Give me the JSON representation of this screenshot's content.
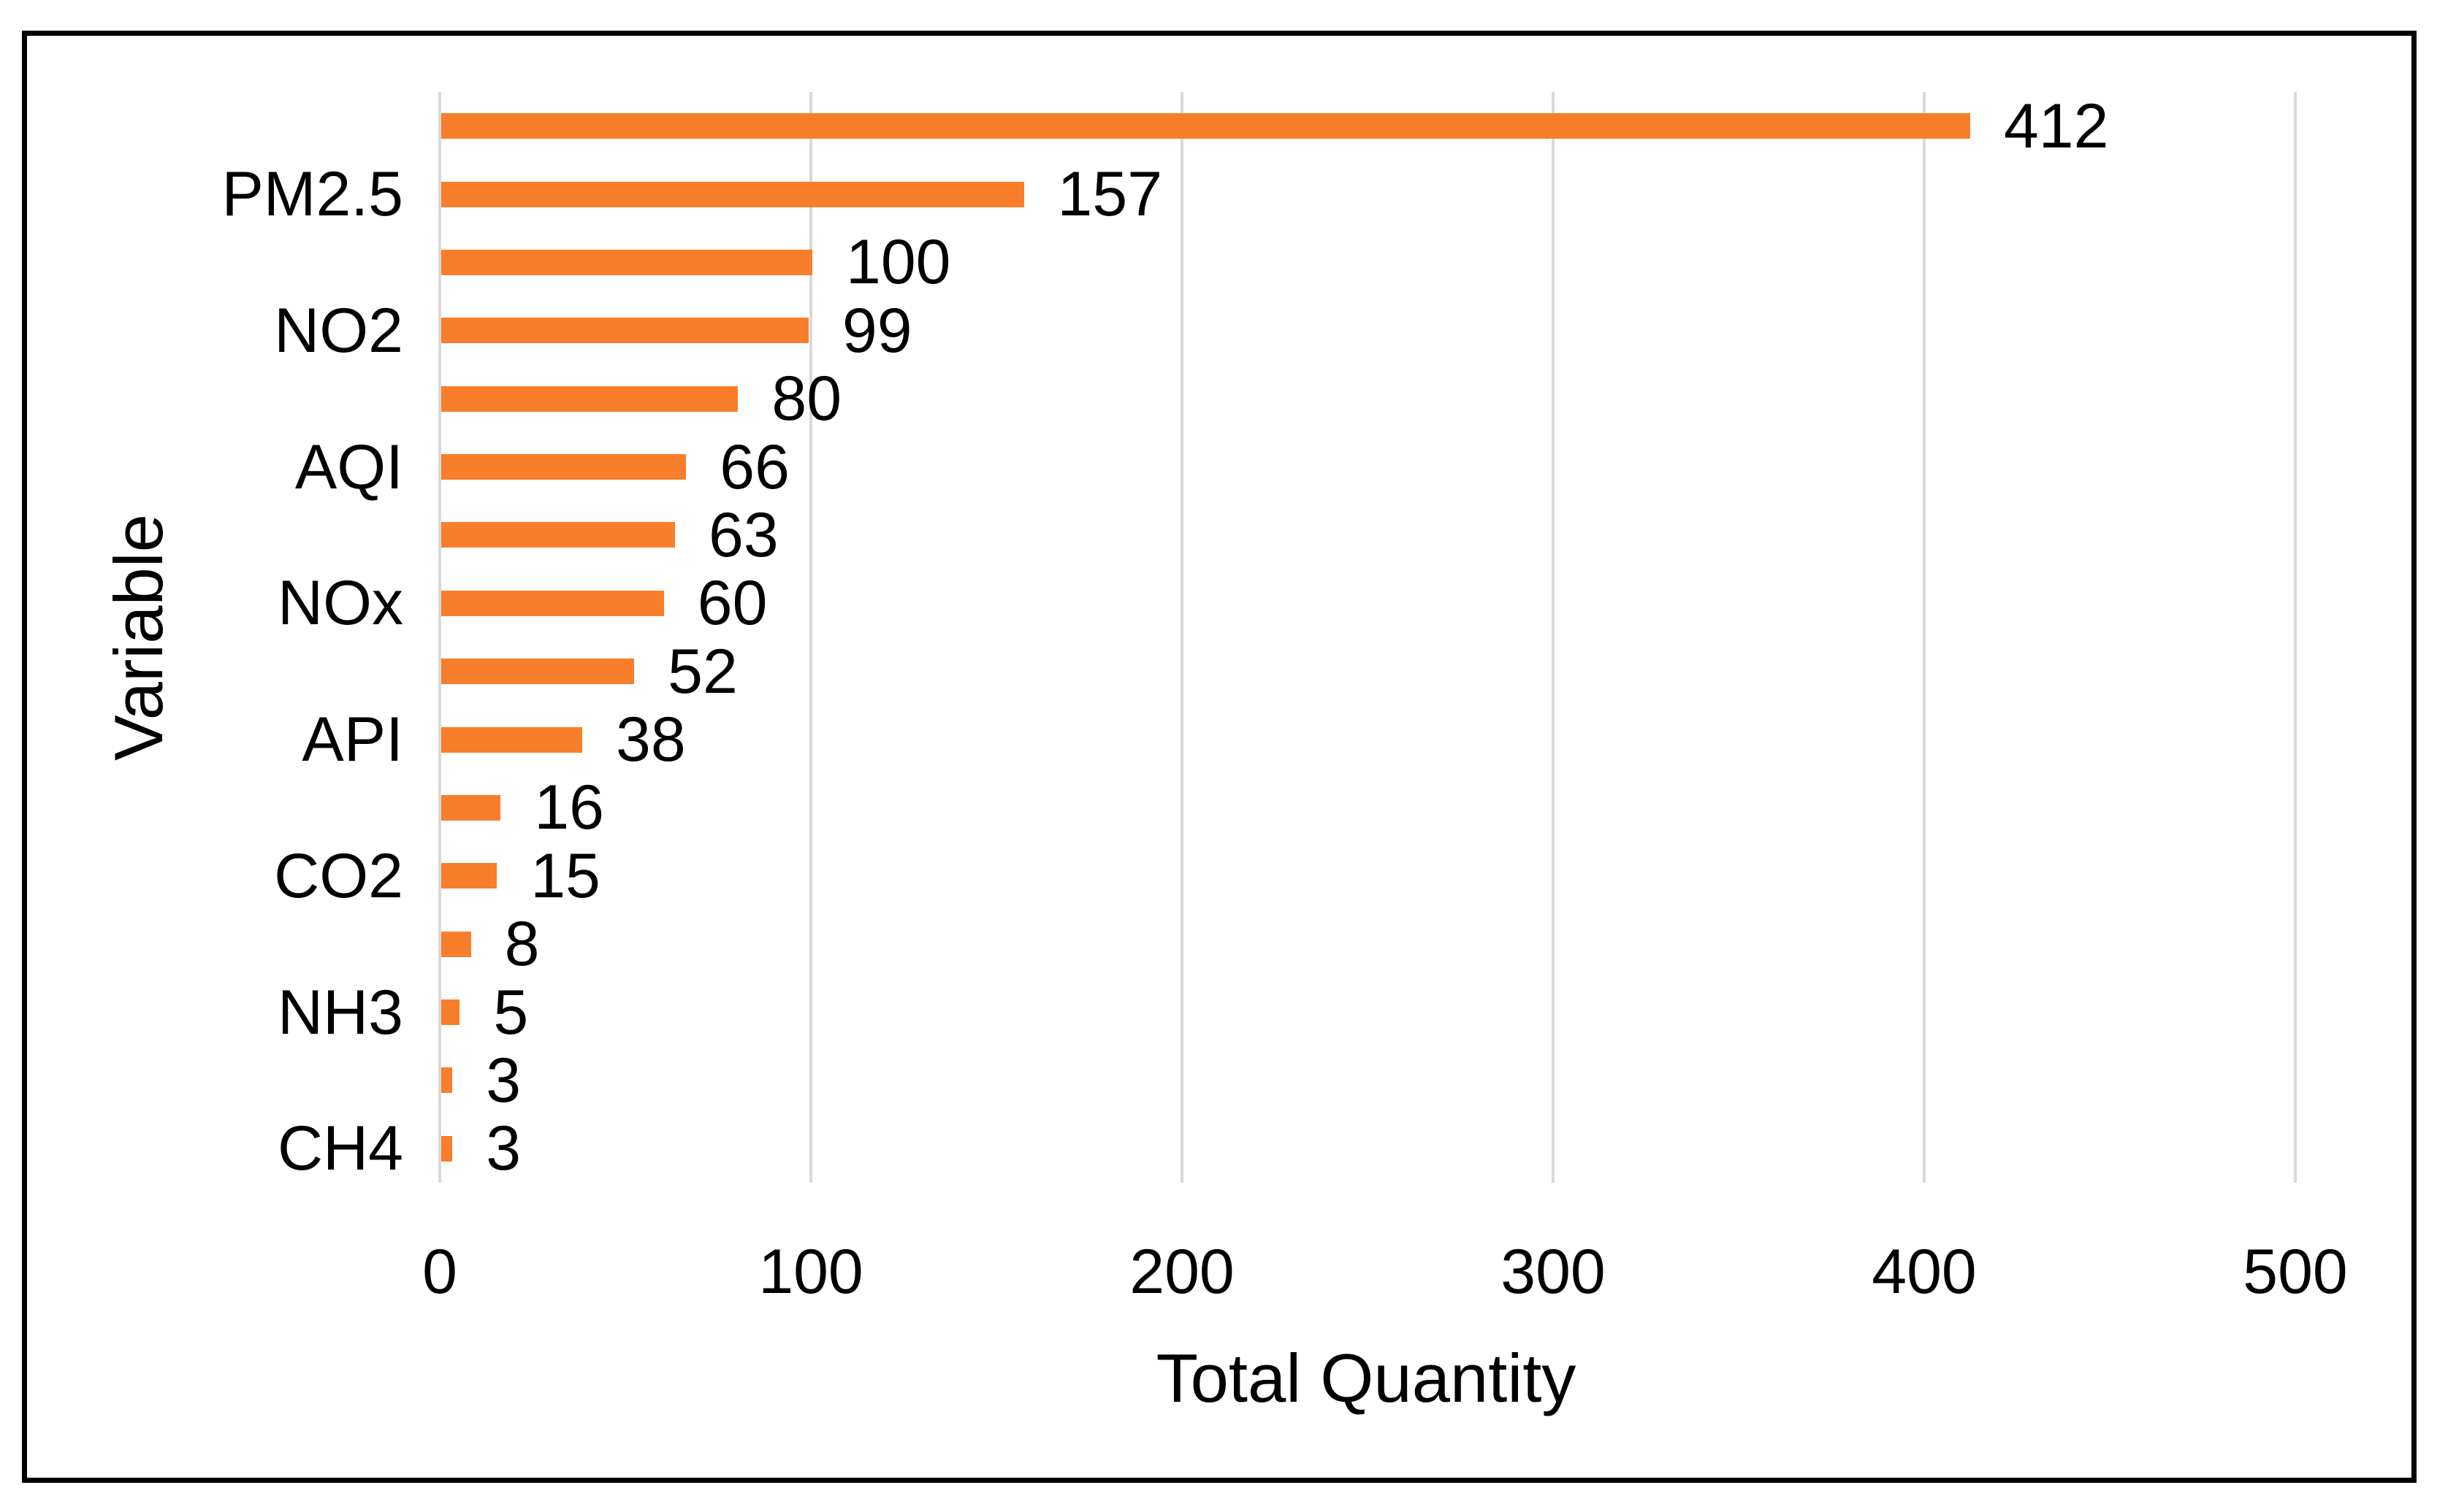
{
  "chart_data": {
    "type": "bar",
    "orientation": "horizontal",
    "xlabel": "Total Quantity",
    "ylabel": "Variable",
    "categories": [
      "",
      "PM2.5",
      "",
      "NO2",
      "",
      "AQI",
      "",
      "NOx",
      "",
      "API",
      "",
      "CO2",
      "",
      "NH3",
      "",
      "CH4"
    ],
    "values": [
      412,
      157,
      100,
      99,
      80,
      66,
      63,
      60,
      52,
      38,
      16,
      15,
      8,
      5,
      3,
      3
    ],
    "x_ticks": [
      "0",
      "100",
      "200",
      "300",
      "400",
      "500"
    ],
    "xlim": [
      0,
      500
    ],
    "grid": true,
    "legend": false,
    "data_labels": true,
    "bar_color": "#F97E2B",
    "gridline_color": "#D9D9D9",
    "text_color": "#000000",
    "border_color": "#000000"
  }
}
